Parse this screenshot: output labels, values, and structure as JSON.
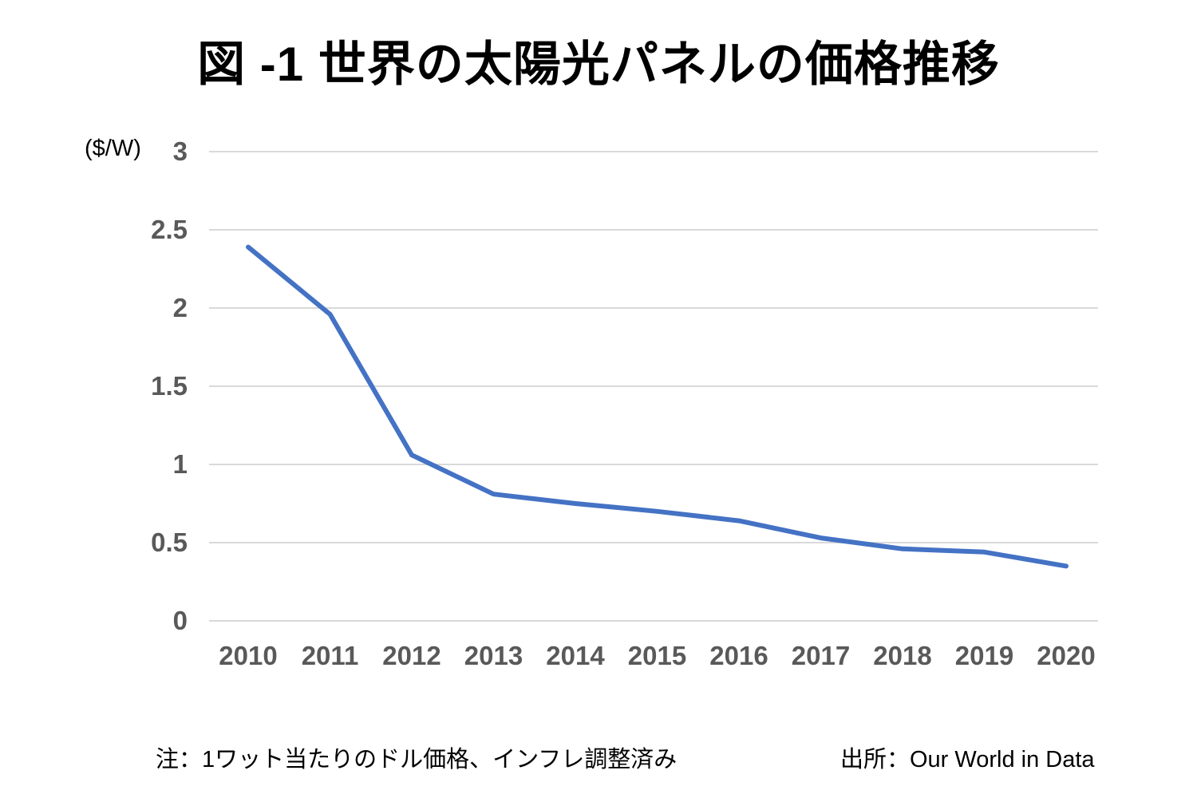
{
  "title": "図 -1 世界の太陽光パネルの価格推移",
  "notes": {
    "left": "注：1ワット当たりのドル価格、インフレ調整済み",
    "right": "出所：Our World in Data"
  },
  "colors": {
    "line": "#4472C4",
    "gridline": "#D9D9D9",
    "tick_label": "#595959",
    "title_text": "#000000",
    "note_text": "#000000"
  },
  "chart_data": {
    "type": "line",
    "title": "図 -1 世界の太陽光パネルの価格推移",
    "xlabel": "",
    "ylabel": "($/W)",
    "categories": [
      "2010",
      "2011",
      "2012",
      "2013",
      "2014",
      "2015",
      "2016",
      "2017",
      "2018",
      "2019",
      "2020"
    ],
    "values": [
      2.39,
      1.96,
      1.06,
      0.81,
      0.75,
      0.7,
      0.64,
      0.53,
      0.46,
      0.44,
      0.35
    ],
    "ylim": [
      0,
      3
    ],
    "yticks": [
      0,
      0.5,
      1,
      1.5,
      2,
      2.5,
      3
    ],
    "grid": "horizontal",
    "legend": "none",
    "note": "注：1ワット当たりのドル価格、インフレ調整済み",
    "source": "出所：Our World in Data"
  }
}
